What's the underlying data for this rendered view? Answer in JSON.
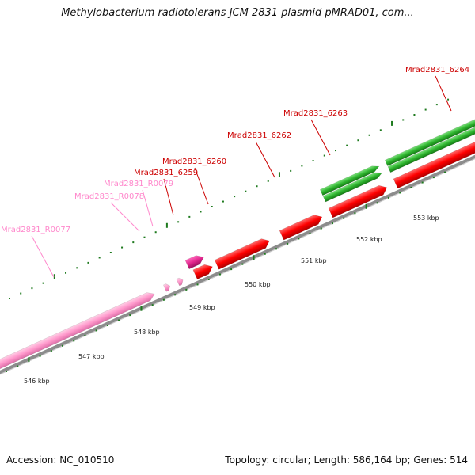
{
  "title": "Methylobacterium radiotolerans JCM 2831 plasmid pMRAD01, com...",
  "footer": {
    "accession": "Accession: NC_010510",
    "info": "Topology: circular; Length: 586,164 bp; Genes: 514"
  },
  "colors": {
    "gene_red": "#ff0000",
    "gene_green": "#2fb52f",
    "rna_pink": "#ff99cc",
    "gene_magenta": "#e2278e",
    "axis_gray": "#8c8c8c",
    "tick_green": "#1e7a1e",
    "label_red": "#cc0000",
    "label_pink": "#ff88cc"
  },
  "kbp_labels": [
    "546 kbp",
    "547 kbp",
    "548 kbp",
    "549 kbp",
    "550 kbp",
    "551 kbp",
    "552 kbp",
    "553 kbp"
  ],
  "gene_labels": [
    "Mrad2831_R0077",
    "Mrad2831_R0078",
    "Mrad2831_R0079",
    "Mrad2831_6259",
    "Mrad2831_6260",
    "Mrad2831_6262",
    "Mrad2831_6263",
    "Mrad2831_6264"
  ]
}
